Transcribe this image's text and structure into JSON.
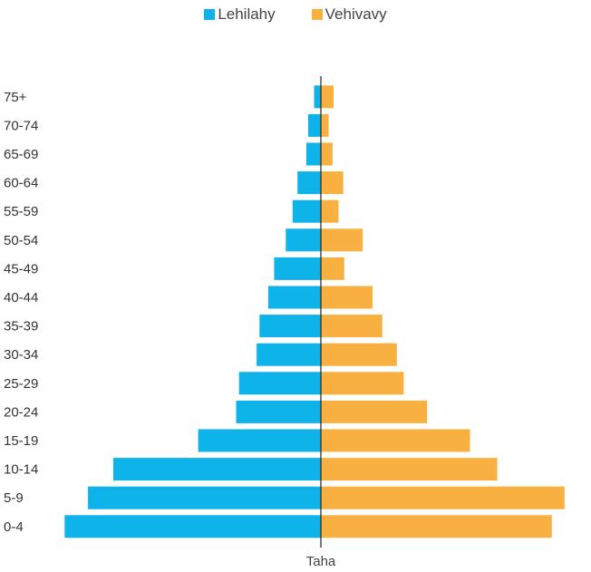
{
  "chart_data": {
    "type": "bar",
    "orientation": "horizontal",
    "layout": "population-pyramid",
    "title": "",
    "xlabel": "Taha",
    "ylabel": "",
    "legend_position": "top-center",
    "grid": false,
    "categories": [
      "75+",
      "70-74",
      "65-69",
      "60-64",
      "55-59",
      "50-54",
      "45-49",
      "40-44",
      "35-39",
      "30-34",
      "25-29",
      "20-24",
      "15-19",
      "10-14",
      "5-9",
      "0-4"
    ],
    "series": [
      {
        "name": "Lehilahy",
        "color": "#0eb3ea",
        "values": [
          0.7,
          1.3,
          1.5,
          2.4,
          2.9,
          3.6,
          4.8,
          5.4,
          6.3,
          6.6,
          8.4,
          8.7,
          12.6,
          21.3,
          23.9,
          26.3
        ]
      },
      {
        "name": "Vehivavy",
        "color": "#f8b041",
        "values": [
          1.3,
          0.8,
          1.2,
          2.3,
          1.8,
          4.3,
          2.4,
          5.3,
          6.3,
          7.8,
          8.5,
          10.9,
          15.3,
          18.1,
          25.0,
          23.7
        ]
      }
    ],
    "xlim": [
      -27,
      27
    ]
  }
}
